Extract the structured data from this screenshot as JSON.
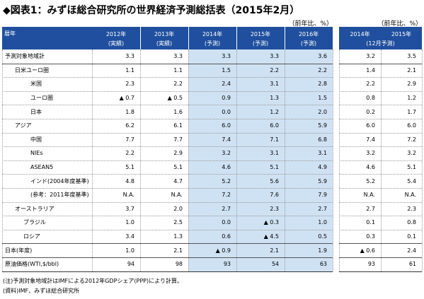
{
  "title": "◆図表1：みずほ総合研究所の世界経済予測総括表（2015年2月）",
  "main_table": {
    "unit": "（前年比、%）",
    "corner": "暦年",
    "columns": [
      {
        "year": "2012年",
        "note": "(実績)"
      },
      {
        "year": "2013年",
        "note": "(実績)"
      },
      {
        "year": "2014年",
        "note": "(予測)"
      },
      {
        "year": "2015年",
        "note": "(予測)"
      },
      {
        "year": "2016年",
        "note": "(予測)"
      }
    ],
    "rows": [
      {
        "label": "予測対象地域計",
        "values": [
          "3.3",
          "3.3",
          "3.3",
          "3.3",
          "3.6"
        ]
      },
      {
        "label": "日米ユーロ圏",
        "values": [
          "1.1",
          "1.1",
          "1.5",
          "2.2",
          "2.2"
        ]
      },
      {
        "label": "米国",
        "values": [
          "2.3",
          "2.2",
          "2.4",
          "3.1",
          "2.8"
        ]
      },
      {
        "label": "ユーロ圏",
        "values": [
          "▲ 0.7",
          "▲ 0.5",
          "0.9",
          "1.3",
          "1.5"
        ]
      },
      {
        "label": "日本",
        "values": [
          "1.8",
          "1.6",
          "0.0",
          "1.2",
          "2.0"
        ]
      },
      {
        "label": "アジア",
        "values": [
          "6.2",
          "6.1",
          "6.0",
          "6.0",
          "5.9"
        ]
      },
      {
        "label": "中国",
        "values": [
          "7.7",
          "7.7",
          "7.4",
          "7.1",
          "6.8"
        ]
      },
      {
        "label": "NIEs",
        "values": [
          "2.2",
          "2.9",
          "3.2",
          "3.1",
          "3.1"
        ]
      },
      {
        "label": "ASEAN5",
        "values": [
          "5.1",
          "5.1",
          "4.6",
          "5.1",
          "4.9"
        ]
      },
      {
        "label": "インド(2004年度基準)",
        "values": [
          "4.8",
          "4.7",
          "5.2",
          "5.6",
          "5.9"
        ]
      },
      {
        "label": "(参考：2011年度基準)",
        "values": [
          "N.A.",
          "N.A.",
          "7.2",
          "7.6",
          "7.9"
        ]
      },
      {
        "label": "オーストラリア",
        "values": [
          "3.7",
          "2.0",
          "2.7",
          "2.3",
          "2.7"
        ]
      },
      {
        "label": "ブラジル",
        "values": [
          "1.0",
          "2.5",
          "0.0",
          "▲ 0.3",
          "1.0"
        ]
      },
      {
        "label": "ロシア",
        "values": [
          "3.4",
          "1.3",
          "0.6",
          "▲ 4.5",
          "0.5"
        ]
      },
      {
        "label": "日本(年度)",
        "values": [
          "1.0",
          "2.1",
          "▲ 0.9",
          "2.1",
          "1.9"
        ]
      },
      {
        "label": "原油価格(WTI,$/bbl)",
        "values": [
          "94",
          "98",
          "93",
          "54",
          "63"
        ]
      }
    ]
  },
  "side_table": {
    "unit": "（前年比、%）",
    "years": [
      "2014年",
      "2015年"
    ],
    "note": "(12月予測)",
    "rows": [
      [
        "3.2",
        "3.5"
      ],
      [
        "1.4",
        "2.1"
      ],
      [
        "2.2",
        "2.9"
      ],
      [
        "0.8",
        "1.2"
      ],
      [
        "0.2",
        "1.7"
      ],
      [
        "6.0",
        "6.0"
      ],
      [
        "7.4",
        "7.2"
      ],
      [
        "3.2",
        "3.2"
      ],
      [
        "4.6",
        "5.1"
      ],
      [
        "5.2",
        "5.4"
      ],
      [
        "N.A.",
        "N.A."
      ],
      [
        "2.7",
        "2.3"
      ],
      [
        "0.1",
        "0.8"
      ],
      [
        "0.3",
        "0.1"
      ],
      [
        "▲ 0.6",
        "2.4"
      ],
      [
        "93",
        "61"
      ]
    ]
  },
  "notes": [
    "(注)予測対象地域計はIMFによる2012年GDPシェア(PPP)により計算。",
    "(資料)IMF、みずほ総合研究所"
  ]
}
